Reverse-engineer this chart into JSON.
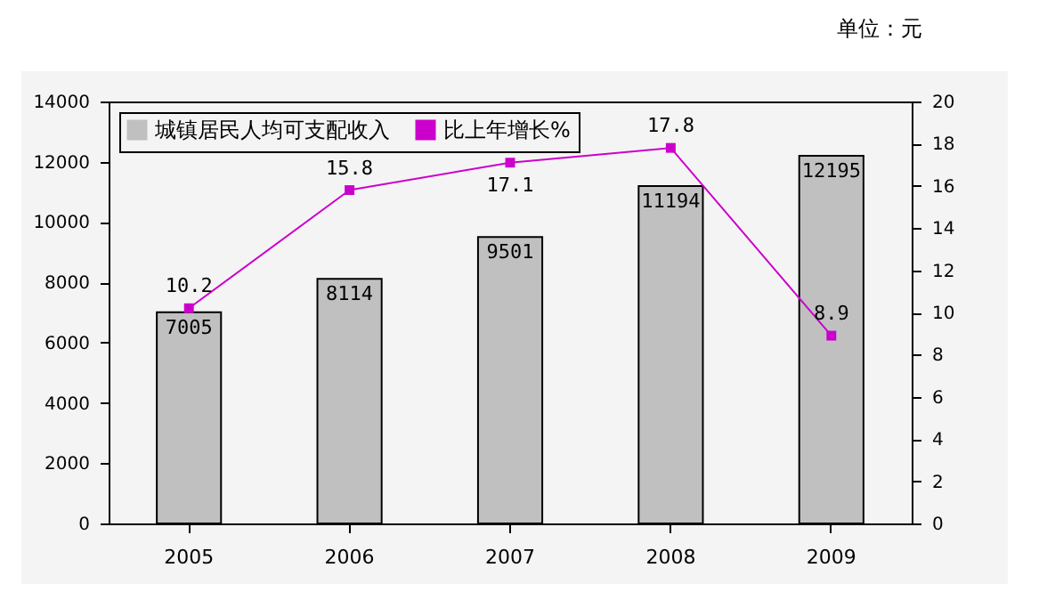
{
  "chart_data": {
    "type": "bar",
    "categories": [
      "2005",
      "2006",
      "2007",
      "2008",
      "2009"
    ],
    "series": [
      {
        "name": "城镇居民人均可支配收入",
        "color": "#c0c0c0",
        "values": [
          7005,
          8114,
          9501,
          11194,
          12195
        ]
      },
      {
        "name": "比上年增长%",
        "type": "line",
        "axis": "y2",
        "color": "#cc00cc",
        "values": [
          10.2,
          15.8,
          17.1,
          17.8,
          8.9
        ]
      }
    ],
    "ylim": [
      0,
      14000
    ],
    "yticks": [
      0,
      2000,
      4000,
      6000,
      8000,
      10000,
      12000,
      14000
    ],
    "y2lim": [
      0,
      20
    ],
    "y2ticks": [
      0,
      2,
      4,
      6,
      8,
      10,
      12,
      14,
      16,
      18,
      20
    ],
    "data_labels": true,
    "legend": "top left",
    "marker": "square",
    "grid": false,
    "annotations": [
      "单位：元"
    ]
  }
}
